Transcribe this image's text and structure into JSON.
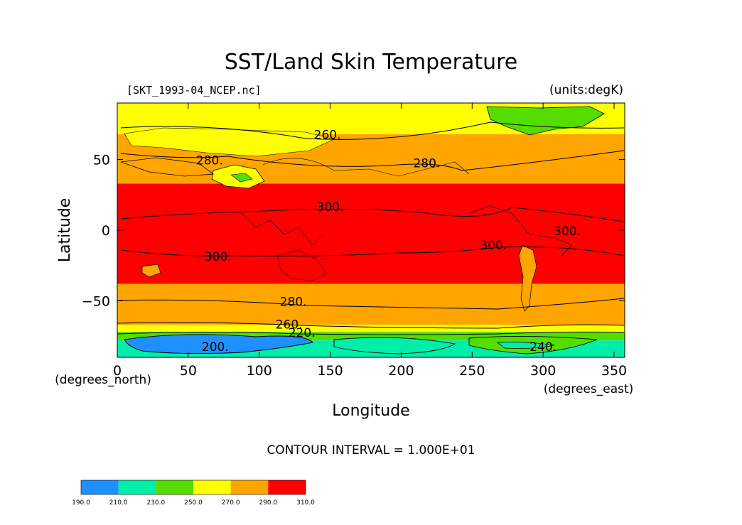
{
  "title": "SST/Land Skin Temperature",
  "file_label": "[SKT_1993-04_NCEP.nc]",
  "units_label": "(units:degK)",
  "xlabel": "Longitude",
  "ylabel": "Latitude",
  "x_units": "(degrees_east)",
  "y_units": "(degrees_north)",
  "contour_interval": "CONTOUR INTERVAL = 1.000E+01",
  "chart_data": {
    "type": "heatmap",
    "xlim": [
      0,
      357.5
    ],
    "ylim": [
      -90,
      90
    ],
    "x_ticks": [
      0,
      50,
      100,
      150,
      200,
      250,
      300,
      350
    ],
    "y_ticks": [
      50,
      0,
      -50
    ],
    "x_tick_labels": [
      "0",
      "50",
      "100",
      "150",
      "200",
      "250",
      "300",
      "350"
    ],
    "y_tick_labels": [
      "50",
      "0",
      "−50"
    ],
    "bands": [
      {
        "range": [
          290,
          310
        ],
        "lat": [
          -38,
          33
        ],
        "color": "#ff0000"
      },
      {
        "range": [
          270,
          290
        ],
        "lat": [
          -67,
          -38
        ],
        "color": "#ffa500"
      },
      {
        "range": [
          270,
          290
        ],
        "lat": [
          33,
          68
        ],
        "color": "#ffa500"
      },
      {
        "range": [
          250,
          270
        ],
        "lat": [
          68,
          90
        ],
        "color": "#ffff00"
      },
      {
        "range": [
          250,
          270
        ],
        "lat": [
          -72,
          -67
        ],
        "color": "#ffff00"
      },
      {
        "range": [
          230,
          250
        ],
        "lat": [
          -78,
          -72
        ],
        "color": "#55dd00"
      },
      {
        "range": [
          210,
          230
        ],
        "lat": [
          -90,
          -78
        ],
        "color": "#00eeaa"
      }
    ],
    "contour_labels": [
      {
        "text": "260.",
        "lon": 148,
        "lat": 67
      },
      {
        "text": "280.",
        "lon": 65,
        "lat": 49
      },
      {
        "text": "280.",
        "lon": 218,
        "lat": 47
      },
      {
        "text": "300.",
        "lon": 150,
        "lat": 16
      },
      {
        "text": "300.",
        "lon": 71,
        "lat": -19
      },
      {
        "text": "300.",
        "lon": 265,
        "lat": -11
      },
      {
        "text": "300.",
        "lon": 317,
        "lat": -1
      },
      {
        "text": "280.",
        "lon": 124,
        "lat": -51
      },
      {
        "text": "260.",
        "lon": 121,
        "lat": -67
      },
      {
        "text": "220.",
        "lon": 130,
        "lat": -73
      },
      {
        "text": "200.",
        "lon": 69,
        "lat": -83
      },
      {
        "text": "240.",
        "lon": 300,
        "lat": -83
      }
    ],
    "colorbar": {
      "colors": [
        "#1e90ff",
        "#00eeaa",
        "#55dd00",
        "#ffff00",
        "#ffa500",
        "#ff0000"
      ],
      "labels": [
        "190.0",
        "210.0",
        "230.0",
        "250.0",
        "270.0",
        "290.0",
        "310.0"
      ]
    }
  }
}
